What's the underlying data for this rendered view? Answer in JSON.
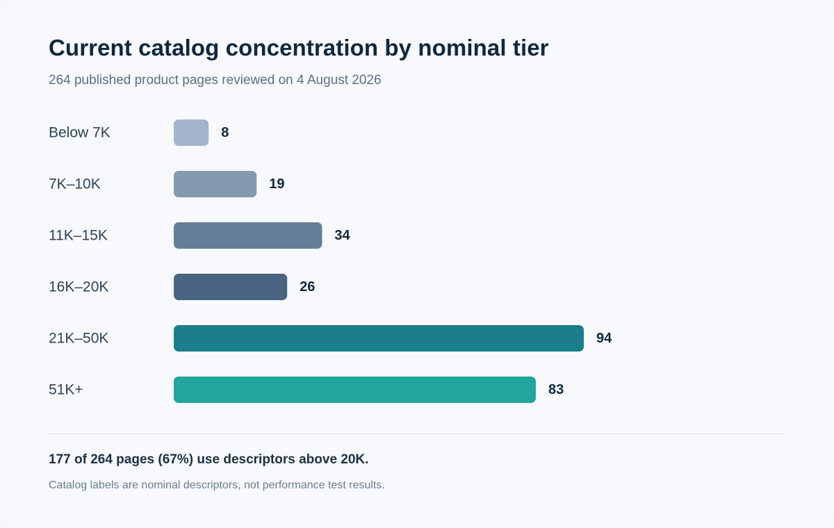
{
  "header": {
    "title": "Current catalog concentration by nominal tier",
    "subtitle": "264 published product pages reviewed on 4 August 2026"
  },
  "chart_data": {
    "type": "bar",
    "orientation": "horizontal",
    "title": "Current catalog concentration by nominal tier",
    "subtitle": "264 published product pages reviewed on 4 August 2026",
    "xlabel": "",
    "ylabel": "",
    "grid": false,
    "categories": [
      "Below 7K",
      "7K–10K",
      "11K–15K",
      "16K–20K",
      "21K–50K",
      "51K+"
    ],
    "values": [
      8,
      19,
      34,
      26,
      94,
      83
    ],
    "colors": [
      "#a3b5ca",
      "#8599b0",
      "#647e98",
      "#4a6582",
      "#1b7e8b",
      "#21a59c"
    ],
    "xlim": [
      0,
      94
    ]
  },
  "footer": {
    "summary": "177 of 264 pages (67%) use descriptors above 20K.",
    "note": "Catalog labels are nominal descriptors, not performance test results."
  }
}
